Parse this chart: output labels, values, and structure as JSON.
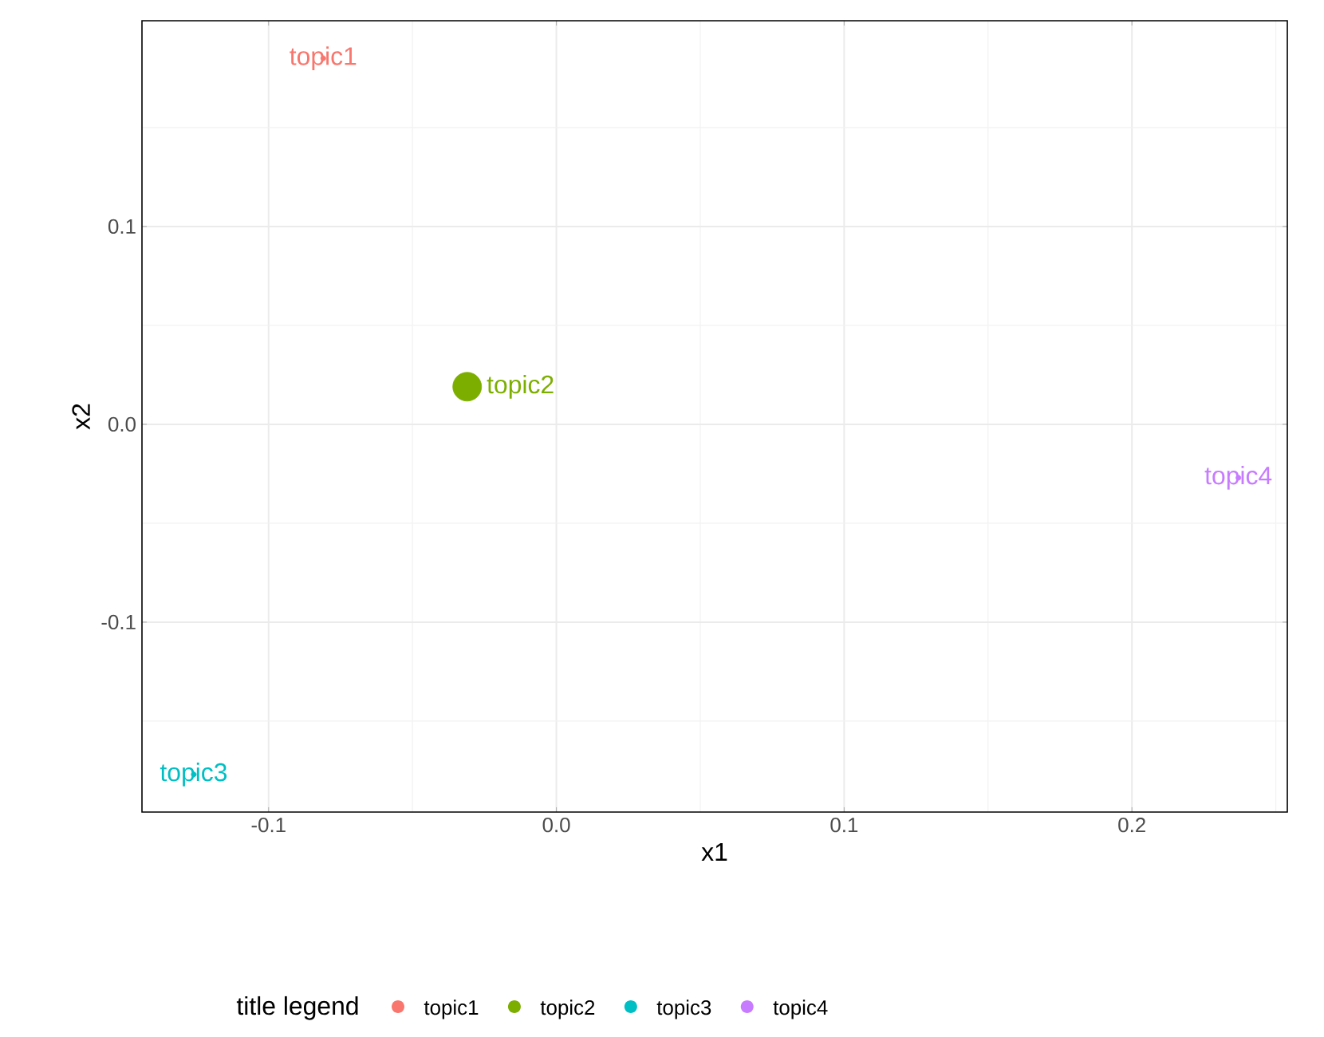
{
  "chart_data": {
    "type": "bubble",
    "xlabel": "x1",
    "ylabel": "x2",
    "legend_title": "title legend",
    "legend": "bottom",
    "grid": true,
    "xlim": [
      -0.144,
      0.254
    ],
    "ylim": [
      -0.196,
      0.204
    ],
    "xticks": [
      -0.1,
      {
        "value": 0,
        "label": "0.0"
      },
      0.1,
      0.2
    ],
    "yticks": [
      -0.1,
      {
        "value": 0,
        "label": "0.0"
      },
      0.1
    ],
    "series": [
      {
        "name": "topic1",
        "color": "#F8766D",
        "x": [
          -0.081
        ],
        "values": [
          0.185
        ],
        "sizes": [
          0.03
        ]
      },
      {
        "name": "topic2",
        "color": "#7CAE00",
        "x": [
          -0.031
        ],
        "values": [
          0.019
        ],
        "sizes": [
          1
        ]
      },
      {
        "name": "topic3",
        "color": "#00BFC4",
        "x": [
          -0.126
        ],
        "values": [
          -0.177
        ],
        "sizes": [
          0.03
        ]
      },
      {
        "name": "topic4",
        "color": "#C77CFF",
        "x": [
          0.237
        ],
        "values": [
          -0.027
        ],
        "sizes": [
          0.03
        ]
      }
    ]
  }
}
